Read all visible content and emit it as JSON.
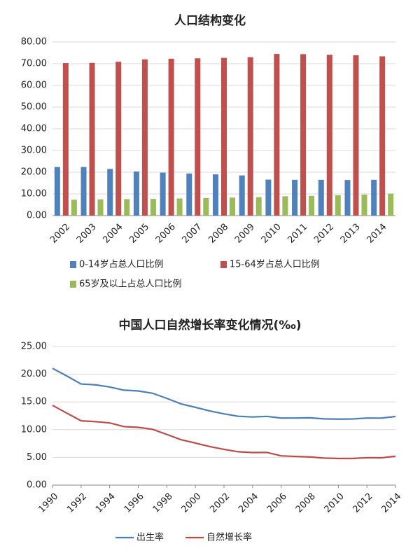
{
  "chart_data": [
    {
      "type": "bar",
      "title": "人口结构变化",
      "categories": [
        "2002",
        "2003",
        "2004",
        "2005",
        "2006",
        "2007",
        "2008",
        "2009",
        "2010",
        "2011",
        "2012",
        "2013",
        "2014"
      ],
      "series": [
        {
          "name": "0-14岁占总人口比例",
          "color": "#4f81bd",
          "values": [
            22.4,
            22.4,
            21.5,
            20.3,
            19.8,
            19.4,
            19.0,
            18.5,
            16.6,
            16.5,
            16.5,
            16.4,
            16.5
          ]
        },
        {
          "name": "15-64岁占总人口比例",
          "color": "#c0504d",
          "values": [
            70.3,
            70.4,
            70.9,
            72.0,
            72.3,
            72.5,
            72.7,
            73.0,
            74.5,
            74.4,
            74.1,
            73.9,
            73.4
          ]
        },
        {
          "name": "65岁及以上占总人口比例",
          "color": "#9bbb59",
          "values": [
            7.3,
            7.5,
            7.6,
            7.7,
            7.9,
            8.1,
            8.3,
            8.5,
            8.9,
            9.1,
            9.4,
            9.7,
            10.1
          ]
        }
      ],
      "ylim": [
        0,
        80
      ],
      "yticks": [
        {
          "value": 0,
          "label": "0.00"
        },
        {
          "value": 10,
          "label": "10.00"
        },
        {
          "value": 20,
          "label": "20.00"
        },
        {
          "value": 30,
          "label": "30.00"
        },
        {
          "value": 40,
          "label": "40.00"
        },
        {
          "value": 50,
          "label": "50.00"
        },
        {
          "value": 60,
          "label": "60.00"
        },
        {
          "value": 70,
          "label": "70.00"
        },
        {
          "value": 80,
          "label": "80.00"
        }
      ],
      "grid": true
    },
    {
      "type": "line",
      "title": "中国人口自然增长率变化情况(‰)",
      "x": [
        1990,
        1991,
        1992,
        1993,
        1994,
        1995,
        1996,
        1997,
        1998,
        1999,
        2000,
        2001,
        2002,
        2003,
        2004,
        2005,
        2006,
        2007,
        2008,
        2009,
        2010,
        2011,
        2012,
        2013,
        2014
      ],
      "series": [
        {
          "name": "出生率",
          "color": "#4a7ebb",
          "values": [
            21.06,
            19.68,
            18.24,
            18.09,
            17.7,
            17.12,
            16.98,
            16.57,
            15.64,
            14.64,
            14.03,
            13.38,
            12.86,
            12.41,
            12.29,
            12.4,
            12.09,
            12.1,
            12.14,
            11.95,
            11.9,
            11.93,
            12.1,
            12.08,
            12.37
          ]
        },
        {
          "name": "自然增长率",
          "color": "#be4b48",
          "values": [
            14.39,
            12.98,
            11.6,
            11.45,
            11.21,
            10.55,
            10.42,
            10.06,
            9.14,
            8.18,
            7.58,
            6.95,
            6.45,
            6.01,
            5.87,
            5.89,
            5.28,
            5.17,
            5.08,
            4.87,
            4.79,
            4.79,
            4.95,
            4.92,
            5.21
          ]
        }
      ],
      "xlim": [
        1990,
        2014
      ],
      "xticks": [
        1990,
        1992,
        1994,
        1996,
        1998,
        2000,
        2002,
        2004,
        2006,
        2008,
        2010,
        2012,
        2014
      ],
      "ylim": [
        0,
        25
      ],
      "yticks": [
        {
          "value": 0,
          "label": "0.00"
        },
        {
          "value": 5,
          "label": "5.00"
        },
        {
          "value": 10,
          "label": "10.00"
        },
        {
          "value": 15,
          "label": "15.00"
        },
        {
          "value": 20,
          "label": "20.00"
        },
        {
          "value": 25,
          "label": "25.00"
        }
      ],
      "grid": true
    }
  ]
}
